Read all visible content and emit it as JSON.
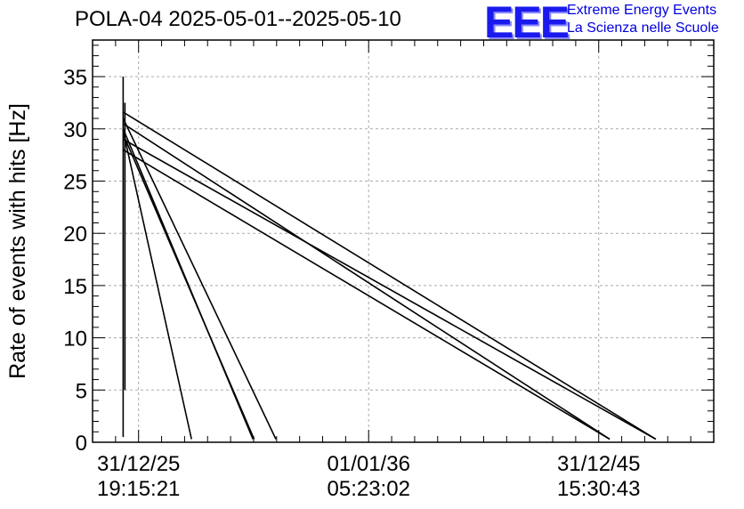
{
  "header": {
    "title": "POLA-04 2025-05-01--2025-05-10"
  },
  "logo": {
    "mark": "EEE",
    "line1": "Extreme Energy Events",
    "line2": "La Scienza nelle Scuole",
    "color": "#1a1aee"
  },
  "chart_data": {
    "type": "line",
    "title": "POLA-04 2025-05-01--2025-05-10",
    "ylabel": "Rate of events with hits [Hz]",
    "xlabel": "",
    "ylim": [
      0,
      38.5
    ],
    "yticks": [
      0,
      5,
      10,
      15,
      20,
      25,
      30,
      35
    ],
    "xlim": [
      -0.2,
      2.5
    ],
    "xticks": [
      {
        "value": 0,
        "line1": "31/12/25",
        "line2": "19:15:21"
      },
      {
        "value": 1,
        "line1": "01/01/36",
        "line2": "05:23:02"
      },
      {
        "value": 2,
        "line1": "31/12/45",
        "line2": "15:30:43"
      }
    ],
    "grid": true,
    "vertical_spike": {
      "x": -0.067,
      "y_min": 0.5,
      "y_max": 35.0,
      "inner_min": 5.0,
      "inner_max": 32.5
    },
    "series": [
      {
        "values": [
          [
            -0.067,
            31.6
          ],
          [
            2.248,
            0.3
          ]
        ]
      },
      {
        "values": [
          [
            -0.067,
            29.0
          ],
          [
            2.248,
            0.3
          ]
        ]
      },
      {
        "values": [
          [
            -0.067,
            30.5
          ],
          [
            2.048,
            0.3
          ]
        ]
      },
      {
        "values": [
          [
            -0.067,
            28.0
          ],
          [
            2.048,
            0.3
          ]
        ]
      },
      {
        "values": [
          [
            -0.067,
            31.0
          ],
          [
            0.597,
            0.3
          ]
        ]
      },
      {
        "values": [
          [
            -0.067,
            30.0
          ],
          [
            0.497,
            0.3
          ]
        ]
      },
      {
        "values": [
          [
            -0.067,
            29.5
          ],
          [
            0.502,
            0.3
          ]
        ]
      },
      {
        "values": [
          [
            -0.067,
            29.8
          ],
          [
            0.23,
            0.3
          ]
        ]
      }
    ]
  }
}
